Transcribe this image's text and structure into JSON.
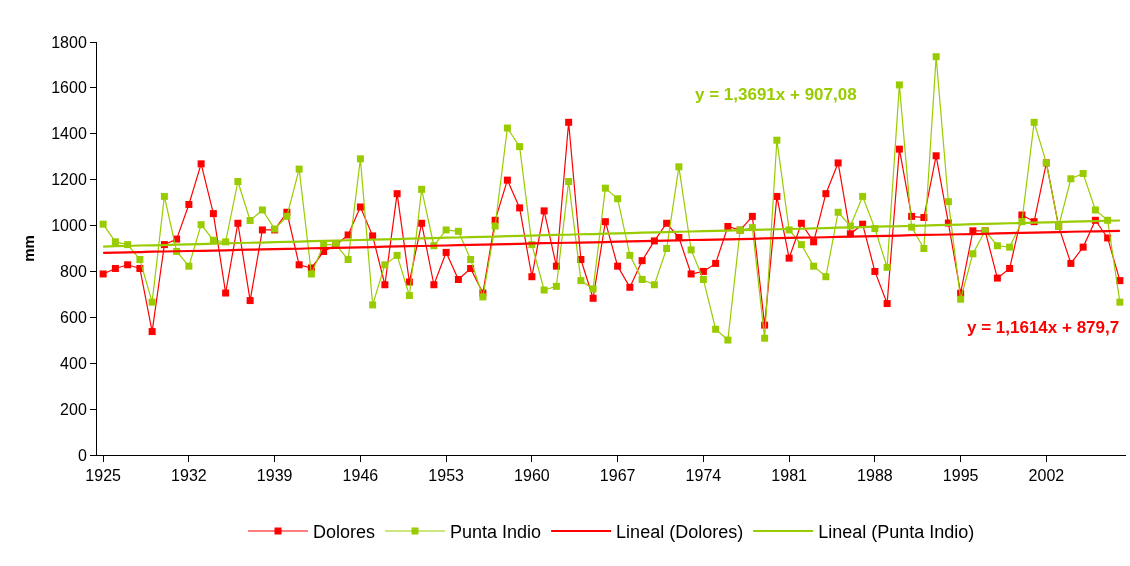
{
  "chart_data": {
    "type": "line",
    "ylabel": "mm",
    "marker": "square",
    "grid": false,
    "legend": "bottom",
    "x": [
      1925,
      1926,
      1927,
      1928,
      1929,
      1930,
      1931,
      1932,
      1933,
      1934,
      1935,
      1936,
      1937,
      1938,
      1939,
      1940,
      1941,
      1942,
      1943,
      1944,
      1945,
      1946,
      1947,
      1948,
      1949,
      1950,
      1951,
      1952,
      1953,
      1954,
      1955,
      1956,
      1957,
      1958,
      1959,
      1960,
      1961,
      1962,
      1963,
      1964,
      1965,
      1966,
      1967,
      1968,
      1969,
      1970,
      1971,
      1972,
      1973,
      1974,
      1975,
      1976,
      1977,
      1978,
      1979,
      1980,
      1981,
      1982,
      1983,
      1984,
      1985,
      1986,
      1987,
      1988,
      1989,
      1990,
      1991,
      1992,
      1993,
      1994,
      1995,
      1996,
      1997,
      1998,
      1999,
      2000,
      2001,
      2002,
      2003,
      2004,
      2005,
      2006,
      2007,
      2008
    ],
    "xlim": [
      1924.5,
      2008.5
    ],
    "xticks": [
      1925,
      1932,
      1939,
      1946,
      1953,
      1960,
      1967,
      1974,
      1981,
      1988,
      1995,
      2002
    ],
    "ylim": [
      0,
      1800
    ],
    "yticks": [
      0,
      200,
      400,
      600,
      800,
      1000,
      1200,
      1400,
      1600,
      1800
    ],
    "series": [
      {
        "name": "Dolores",
        "color": "#ff0000",
        "values": [
          789,
          813,
          829,
          813,
          538,
          917,
          941,
          1092,
          1269,
          1052,
          706,
          1010,
          673,
          981,
          981,
          1058,
          829,
          815,
          887,
          915,
          959,
          1081,
          955,
          742,
          1139,
          754,
          1010,
          742,
          883,
          765,
          813,
          706,
          1023,
          1198,
          1077,
          777,
          1064,
          823,
          1450,
          852,
          683,
          1017,
          823,
          731,
          847,
          933,
          1010,
          948,
          789,
          800,
          835,
          996,
          980,
          1040,
          566,
          1127,
          858,
          1010,
          929,
          1139,
          1273,
          964,
          1006,
          800,
          660,
          1333,
          1040,
          1035,
          1304,
          1011,
          705,
          977,
          977,
          771,
          813,
          1046,
          1017,
          1273,
          996,
          835,
          906,
          1023,
          946,
          760
        ]
      },
      {
        "name": "Punta Indio",
        "color": "#99cc00",
        "values": [
          1006,
          929,
          917,
          852,
          666,
          1127,
          887,
          823,
          1004,
          936,
          929,
          1192,
          1022,
          1068,
          985,
          1040,
          1246,
          789,
          917,
          917,
          852,
          1291,
          654,
          829,
          870,
          695,
          1158,
          912,
          981,
          975,
          852,
          689,
          998,
          1425,
          1344,
          917,
          719,
          735,
          1192,
          760,
          724,
          1163,
          1117,
          870,
          765,
          742,
          900,
          1256,
          894,
          765,
          548,
          501,
          980,
          991,
          509,
          1372,
          981,
          917,
          823,
          777,
          1058,
          998,
          1127,
          987,
          818,
          1613,
          993,
          900,
          1736,
          1104,
          679,
          877,
          977,
          912,
          906,
          1017,
          1450,
          1273,
          996,
          1204,
          1227,
          1068,
          1023,
          666
        ]
      },
      {
        "name": "Lineal (Dolores)",
        "color": "#ff0000",
        "type": "line",
        "marker": "none",
        "values": [
          881,
          882,
          883,
          884,
          886,
          887,
          888,
          889,
          890,
          891,
          892,
          894,
          895,
          896,
          897,
          898,
          899,
          901,
          902,
          903,
          904,
          905,
          906,
          908,
          909,
          910,
          911,
          912,
          913,
          915,
          916,
          917,
          918,
          919,
          920,
          922,
          923,
          924,
          925,
          926,
          927,
          928,
          930,
          931,
          932,
          933,
          934,
          935,
          937,
          938,
          939,
          940,
          941,
          942,
          944,
          945,
          946,
          947,
          948,
          949,
          951,
          952,
          953,
          954,
          955,
          956,
          958,
          959,
          960,
          961,
          962,
          963,
          964,
          966,
          967,
          968,
          969,
          970,
          971,
          973,
          974,
          975,
          976,
          977
        ]
      },
      {
        "name": "Lineal (Punta Indio)",
        "color": "#99cc00",
        "type": "line",
        "marker": "none",
        "values": [
          908,
          910,
          911,
          913,
          914,
          915,
          917,
          918,
          919,
          921,
          922,
          924,
          925,
          926,
          928,
          929,
          930,
          932,
          933,
          934,
          936,
          937,
          939,
          940,
          941,
          943,
          944,
          945,
          947,
          948,
          950,
          951,
          952,
          954,
          955,
          956,
          958,
          959,
          960,
          962,
          963,
          965,
          966,
          967,
          969,
          970,
          971,
          973,
          974,
          976,
          977,
          978,
          980,
          981,
          982,
          984,
          985,
          986,
          988,
          989,
          991,
          992,
          993,
          995,
          996,
          997,
          999,
          1000,
          1002,
          1003,
          1004,
          1006,
          1007,
          1008,
          1010,
          1011,
          1013,
          1014,
          1015,
          1017,
          1018,
          1019,
          1021,
          1022
        ]
      }
    ],
    "annotations": [
      "y = 1,3691x + 907,08",
      "y = 1,1614x + 879,7"
    ]
  }
}
